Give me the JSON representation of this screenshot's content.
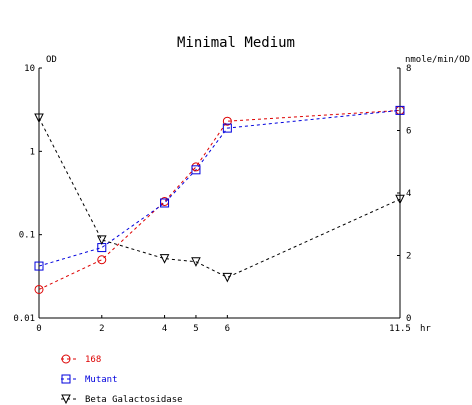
{
  "chart_data": {
    "type": "line",
    "title": "Minimal Medium",
    "left_axis": {
      "label": "OD",
      "scale": "log",
      "range": [
        0.01,
        10
      ],
      "ticks": [
        {
          "value": 10,
          "label": "10"
        },
        {
          "value": 1,
          "label": "1"
        },
        {
          "value": 0.1,
          "label": "0.1"
        },
        {
          "value": 0.01,
          "label": "0.01"
        }
      ]
    },
    "right_axis": {
      "label": "nmole/min/OD",
      "scale": "linear",
      "range": [
        0,
        8
      ],
      "ticks": [
        {
          "value": 8,
          "label": "8"
        },
        {
          "value": 6,
          "label": "6"
        },
        {
          "value": 4,
          "label": "4"
        },
        {
          "value": 2,
          "label": "2"
        },
        {
          "value": 0,
          "label": "0"
        }
      ]
    },
    "x_axis": {
      "unit": "hr",
      "range": [
        0,
        11.5
      ],
      "ticks": [
        {
          "value": 0,
          "label": "0"
        },
        {
          "value": 2,
          "label": "2"
        },
        {
          "value": 4,
          "label": "4"
        },
        {
          "value": 5,
          "label": "5"
        },
        {
          "value": 6,
          "label": "6"
        },
        {
          "value": 11.5,
          "label": "11.5"
        }
      ]
    },
    "x": [
      0,
      2,
      4,
      5,
      6,
      11.5
    ],
    "series": [
      {
        "name": "168",
        "axis": "left",
        "marker": "circle",
        "color": "#dd0000",
        "values": [
          0.022,
          0.05,
          0.25,
          0.65,
          2.3,
          3.1
        ]
      },
      {
        "name": "Mutant",
        "axis": "left",
        "marker": "square",
        "color": "#0000dd",
        "values": [
          0.042,
          0.07,
          0.24,
          0.6,
          1.9,
          3.1
        ]
      },
      {
        "name": "Beta Galactosidase",
        "axis": "right",
        "marker": "triangle-down",
        "color": "#000000",
        "values": [
          6.4,
          2.5,
          1.9,
          1.8,
          1.3,
          3.8
        ]
      }
    ],
    "grid": false,
    "legend_position": "bottom-left"
  }
}
